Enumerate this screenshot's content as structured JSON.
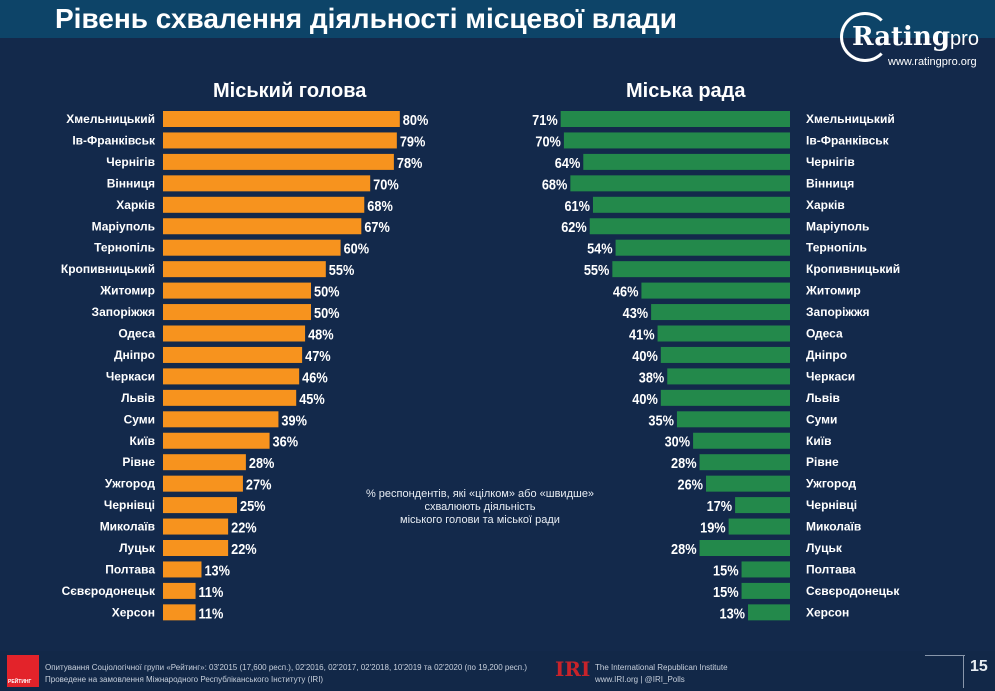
{
  "title": "Рівень схвалення діяльності місцевої влади",
  "logo": {
    "brand": "Rating",
    "brand_suffix": "pro",
    "url": "www.ratingpro.org"
  },
  "note": [
    "% респондентів, які «цілком» або «швидше»",
    "схвалюють діяльність",
    "міського голови та міської ради"
  ],
  "footer": {
    "line1": "Опитування Соціологічної групи «Рейтинг»: 03'2015 (17,600 респ.), 02'2016, 02'2017, 02'2018, 10'2019 та 02'2020 (по 19,200 респ.)",
    "line2": "Проведене на замовлення Міжнародного Республіканського Інституту (IRI)",
    "rating_logo": "РЕЙТИНГ",
    "iri_logo": "IRI",
    "iri_name": "The International Republican Institute",
    "iri_links": "www.IRI.org | @IRI_Polls",
    "page_number": "15"
  },
  "chart_data": [
    {
      "type": "bar",
      "orientation": "horizontal",
      "title": "Міський голова",
      "color": "#f7931e",
      "categories": [
        "Хмельницький",
        "Ів-Франківськ",
        "Чернігів",
        "Вінниця",
        "Харків",
        "Маріуполь",
        "Тернопіль",
        "Кропивницький",
        "Житомир",
        "Запоріжжя",
        "Одеса",
        "Дніпро",
        "Черкаси",
        "Львів",
        "Суми",
        "Київ",
        "Рівне",
        "Ужгород",
        "Чернівці",
        "Миколаїв",
        "Луцьк",
        "Полтава",
        "Сєвєродонецьк",
        "Херсон"
      ],
      "values": [
        80,
        79,
        78,
        70,
        68,
        67,
        60,
        55,
        50,
        50,
        48,
        47,
        46,
        45,
        39,
        36,
        28,
        27,
        25,
        22,
        22,
        13,
        11,
        11
      ],
      "unit": "%"
    },
    {
      "type": "bar",
      "orientation": "horizontal",
      "direction": "right-to-left",
      "title": "Міська рада",
      "color": "#23894b",
      "categories": [
        "Хмельницький",
        "Ів-Франківськ",
        "Чернігів",
        "Вінниця",
        "Харків",
        "Маріуполь",
        "Тернопіль",
        "Кропивницький",
        "Житомир",
        "Запоріжжя",
        "Одеса",
        "Дніпро",
        "Черкаси",
        "Львів",
        "Суми",
        "Київ",
        "Рівне",
        "Ужгород",
        "Чернівці",
        "Миколаїв",
        "Луцьк",
        "Полтава",
        "Сєвєродонецьк",
        "Херсон"
      ],
      "values": [
        71,
        70,
        64,
        68,
        61,
        62,
        54,
        55,
        46,
        43,
        41,
        40,
        38,
        40,
        35,
        30,
        28,
        26,
        17,
        19,
        28,
        15,
        15,
        13
      ],
      "unit": "%"
    }
  ]
}
